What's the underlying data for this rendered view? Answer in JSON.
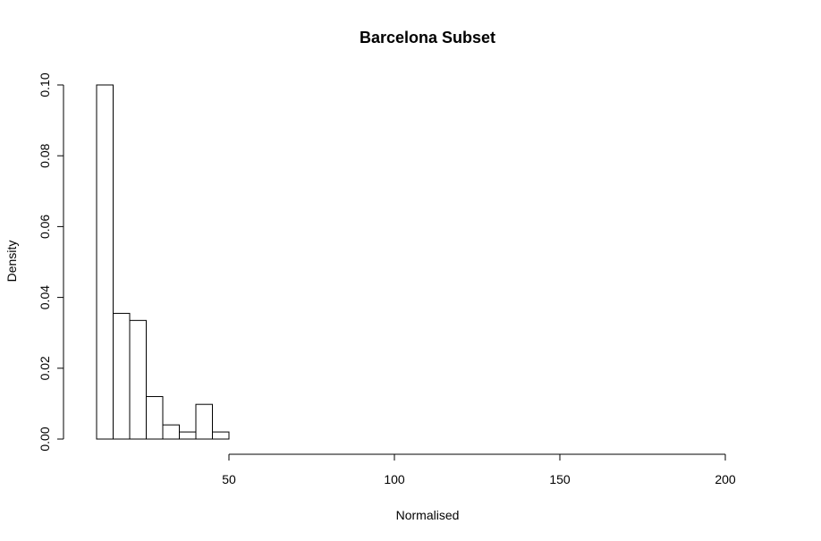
{
  "chart_data": {
    "type": "bar",
    "title": "Barcelona Subset",
    "xlabel": "Normalised",
    "ylabel": "Density",
    "x_ticks": [
      50,
      100,
      150,
      200
    ],
    "y_ticks": [
      "0.00",
      "0.02",
      "0.04",
      "0.06",
      "0.08",
      "0.10"
    ],
    "xlim": [
      10,
      210
    ],
    "ylim": [
      0,
      0.1
    ],
    "bin_width": 5,
    "bin_starts": [
      10,
      15,
      20,
      25,
      30,
      35,
      40,
      45,
      50,
      55,
      60,
      65,
      70,
      75,
      80,
      85,
      90,
      95,
      100,
      105,
      110,
      115,
      120,
      125,
      130,
      135,
      140,
      145,
      150,
      155,
      160,
      165,
      170,
      175,
      180,
      185,
      190,
      195,
      200,
      205
    ],
    "values": [
      0.1,
      0.0355,
      0.0335,
      0.012,
      0.004,
      0.002,
      0.0098,
      0.002,
      0,
      0,
      0,
      0,
      0,
      0,
      0,
      0,
      0,
      0,
      0,
      0,
      0,
      0,
      0,
      0,
      0,
      0,
      0,
      0,
      0,
      0,
      0,
      0,
      0,
      0,
      0,
      0,
      0,
      0,
      0,
      0
    ],
    "grid": false
  }
}
